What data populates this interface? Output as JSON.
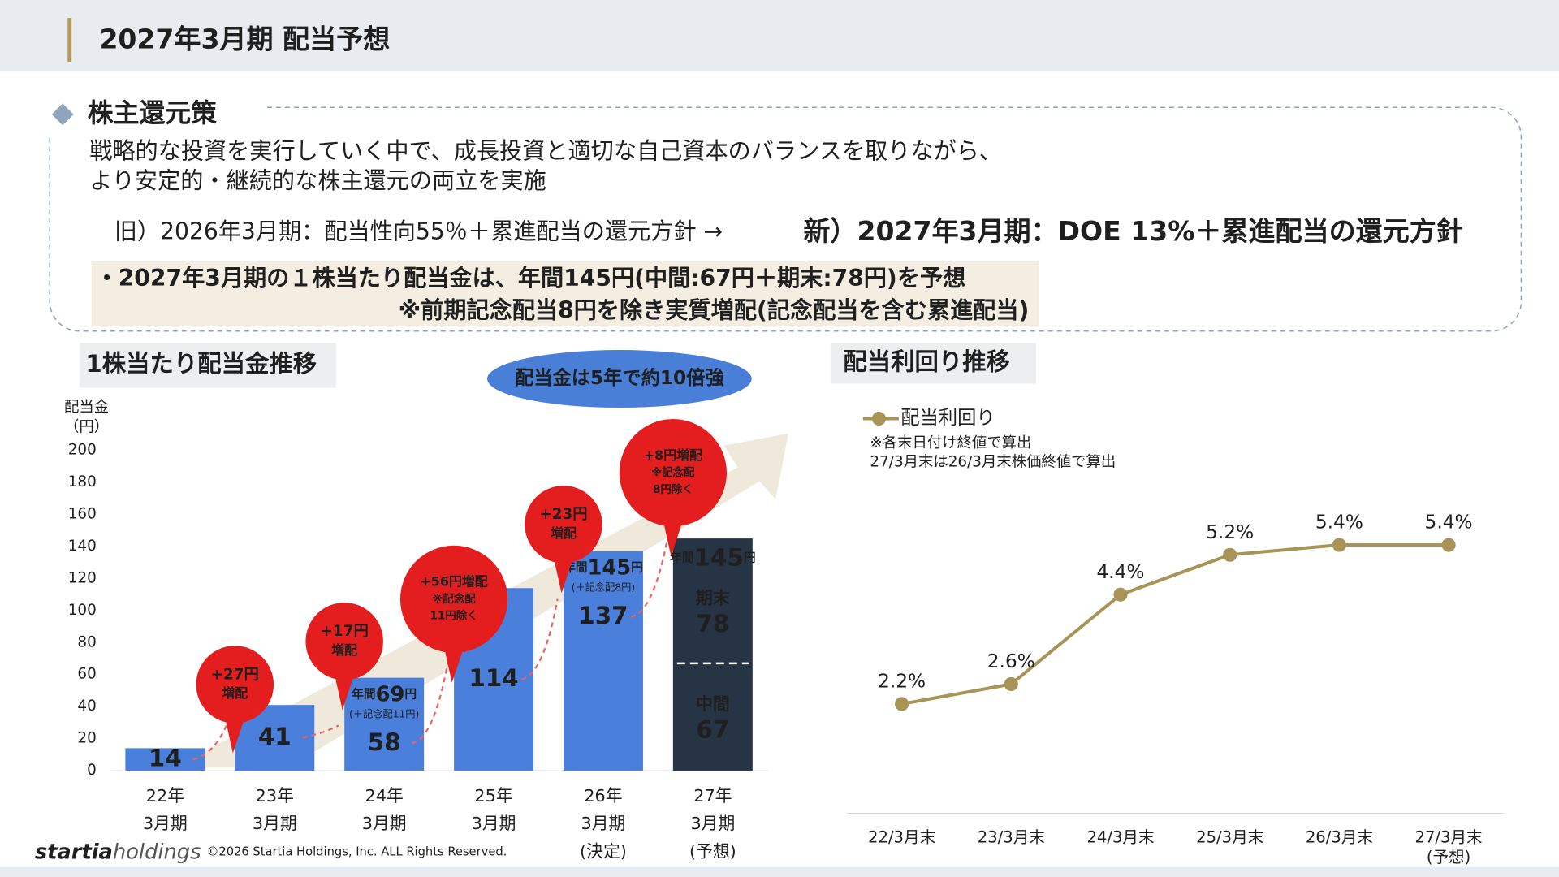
{
  "header": {
    "title": "2027年3月期 配当予想"
  },
  "policy": {
    "heading": "株主還元策",
    "lines": [
      "戦略的な投資を実行していく中で、成長投資と適切な自己資本のバランスを取りながら、",
      "より安定的・継続的な株主還元の両立を実施"
    ],
    "old": "旧）2026年3月期：配当性向55％＋累進配当の還元方針 →",
    "new": "新）2027年3月期：DOE 13%＋累進配当の還元方針",
    "highlights": [
      "・2027年3月期の１株当たり配当金は、年間145円(中間:67円＋期末:78円)を予想",
      "※前期記念配当8円を除き実質増配(記念配当を含む累進配当)"
    ]
  },
  "chart_data": [
    {
      "type": "bar",
      "title": "1株当たり配当金推移",
      "badge": "配当金は5年で約10倍強",
      "y_label": [
        "配当金",
        "（円）"
      ],
      "categories": [
        [
          "22年",
          "3月期"
        ],
        [
          "23年",
          "3月期"
        ],
        [
          "24年",
          "3月期"
        ],
        [
          "25年",
          "3月期"
        ],
        [
          "26年",
          "3月期",
          "(決定)"
        ],
        [
          "27年",
          "3月期",
          "(予想)"
        ]
      ],
      "stacked": true,
      "series": [
        {
          "color": "#4a7fdc",
          "values": [
            14,
            41,
            58,
            114,
            137,
            null
          ]
        },
        {
          "name": "中間",
          "color": "#263445",
          "values": [
            null,
            null,
            null,
            null,
            null,
            67
          ]
        },
        {
          "name": "期末",
          "color": "#263445",
          "values": [
            null,
            null,
            null,
            null,
            null,
            78
          ]
        }
      ],
      "totals": [
        null,
        null,
        {
          "prefix": "年間",
          "value": "69",
          "unit": "円",
          "note": "(＋記念配11円)"
        },
        null,
        {
          "prefix": "年間",
          "value": "145",
          "unit": "円",
          "note": "(＋記念配8円)"
        },
        {
          "prefix": "年間",
          "value": "145",
          "unit": "円"
        }
      ],
      "callouts": [
        null,
        [
          "+27円",
          "増配"
        ],
        [
          "+17円",
          "増配"
        ],
        [
          "+56円増配",
          "※記念配",
          "11円除く"
        ],
        [
          "+23円",
          "増配"
        ],
        [
          "+8円増配",
          "※記念配",
          "8円除く"
        ]
      ],
      "ylim": [
        0,
        200
      ],
      "yticks": [
        0,
        20,
        40,
        60,
        80,
        100,
        120,
        140,
        160,
        180,
        200
      ]
    },
    {
      "type": "line",
      "title": "配当利回り推移",
      "notes": [
        "※各末日付け終値で算出",
        "27/3月末は26/3月末株価終値で算出"
      ],
      "categories": [
        [
          "22/3月末"
        ],
        [
          "23/3月末"
        ],
        [
          "24/3月末"
        ],
        [
          "25/3月末"
        ],
        [
          "26/3月末"
        ],
        [
          "27/3月末",
          "(予想)"
        ]
      ],
      "series": [
        {
          "name": "配当利回り",
          "color": "#a89457",
          "values": [
            2.2,
            2.6,
            4.4,
            5.2,
            5.4,
            5.4
          ],
          "value_labels": [
            "2.2%",
            "2.6%",
            "4.4%",
            "5.2%",
            "5.4%",
            "5.4%"
          ]
        }
      ],
      "ylim": [
        0,
        8
      ]
    }
  ],
  "footer": {
    "logo": [
      "startia",
      "holdings"
    ],
    "copyright": "©2026 Startia Holdings, Inc. ALL Rights Reserved."
  }
}
